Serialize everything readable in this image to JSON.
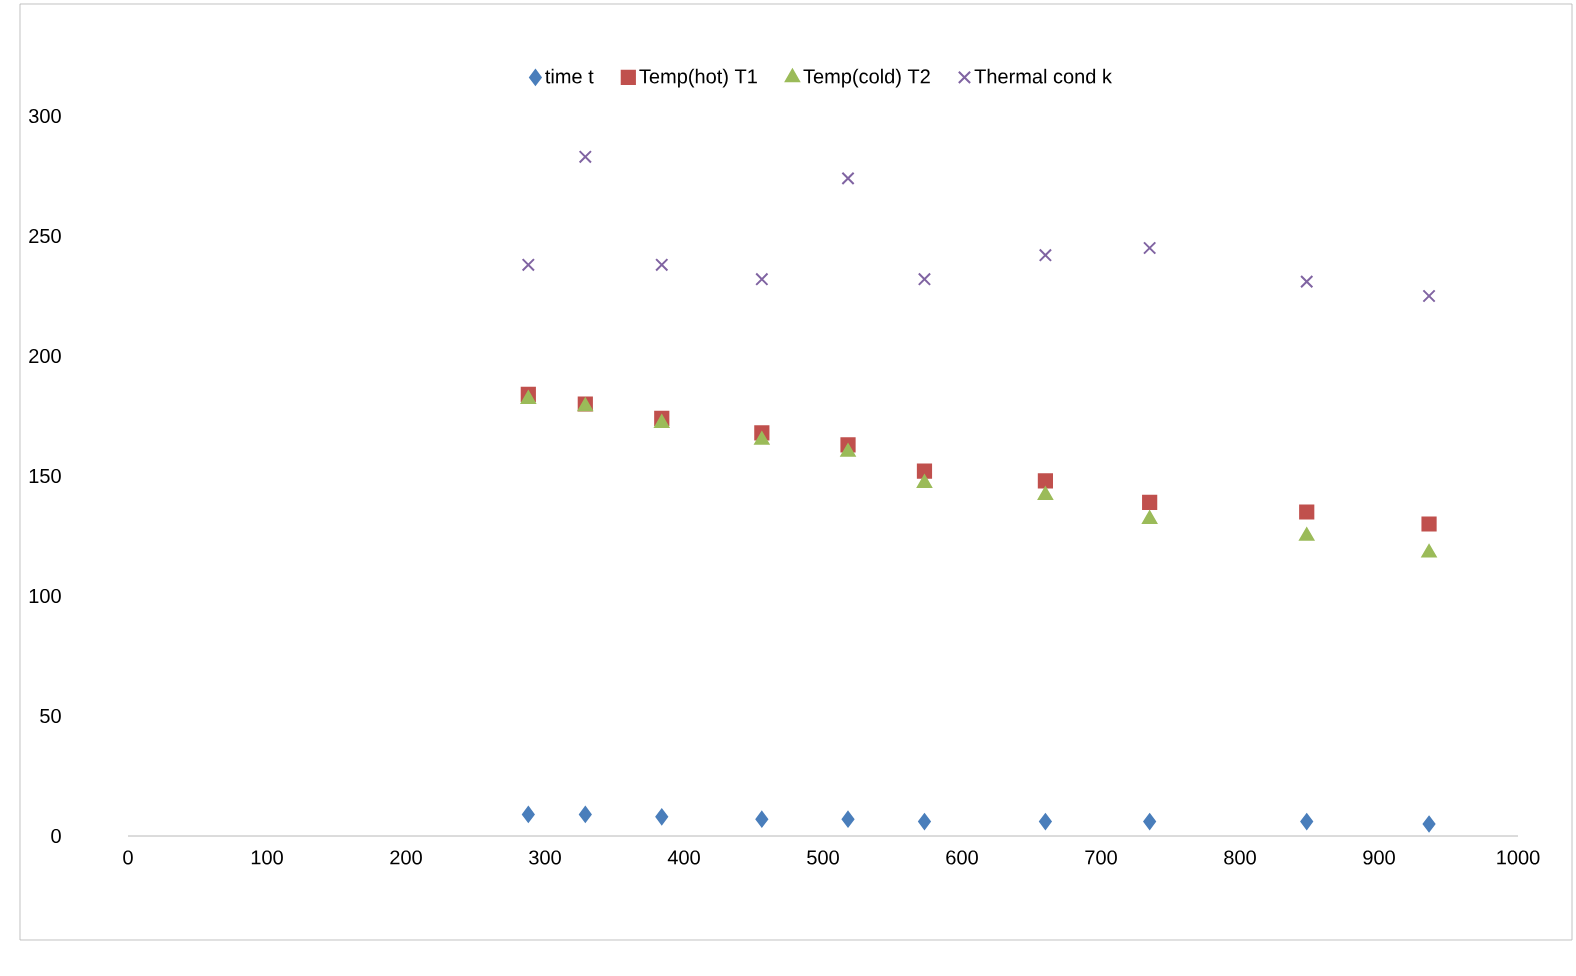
{
  "chart_data": {
    "type": "scatter",
    "legend": "top",
    "grid": false,
    "xlim": [
      0,
      1000
    ],
    "xticks": [
      0,
      100,
      200,
      300,
      400,
      500,
      600,
      700,
      800,
      900,
      1000
    ],
    "ylim": [
      0,
      300
    ],
    "yticks": [
      0,
      50,
      100,
      150,
      200,
      250,
      300
    ],
    "x": [
      288,
      329,
      384,
      456,
      518,
      573,
      660,
      735,
      848,
      936
    ],
    "series": [
      {
        "name": "time t",
        "color": "#4a7ebb",
        "marker": "diamond",
        "values": [
          9,
          9,
          8,
          7,
          7,
          6,
          6,
          6,
          6,
          5
        ]
      },
      {
        "name": "Temp(hot) T1",
        "color": "#c0504d",
        "marker": "square",
        "values": [
          184,
          180,
          174,
          168,
          163,
          152,
          148,
          139,
          135,
          130
        ]
      },
      {
        "name": "Temp(cold) T2",
        "color": "#9bbb59",
        "marker": "triangle",
        "values": [
          182,
          179,
          172,
          165,
          160,
          147,
          142,
          132,
          125,
          118
        ]
      },
      {
        "name": "Thermal cond k",
        "color": "#8064a2",
        "marker": "cross",
        "values": [
          238,
          283,
          238,
          232,
          274,
          232,
          242,
          245,
          231,
          225
        ]
      }
    ]
  }
}
